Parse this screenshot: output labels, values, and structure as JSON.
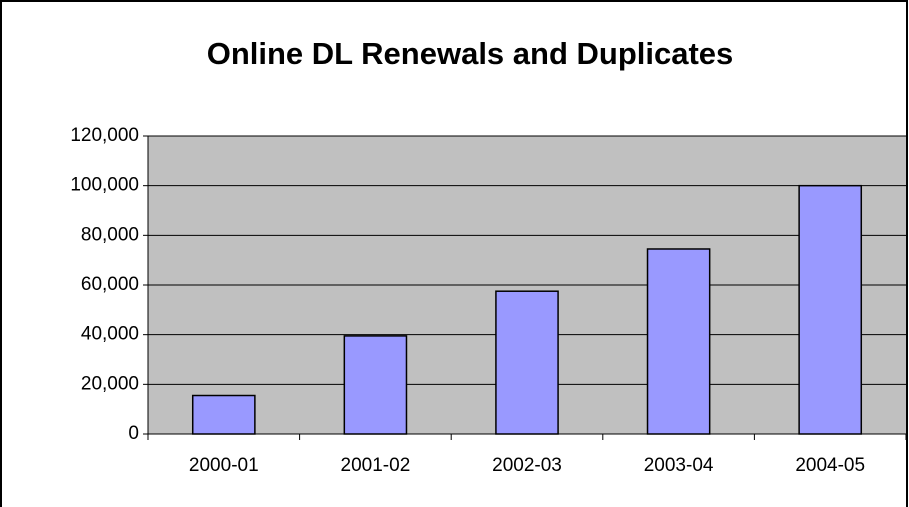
{
  "chart_data": {
    "type": "bar",
    "title": "Online DL Renewals and Duplicates",
    "categories": [
      "2000-01",
      "2001-02",
      "2002-03",
      "2003-04",
      "2004-05"
    ],
    "values": [
      15500,
      39500,
      57500,
      74500,
      100000
    ],
    "color": "#9999ff",
    "ylim": [
      0,
      120000
    ],
    "yticks": [
      0,
      {
        "value": 20000,
        "label": "20,000"
      },
      {
        "value": 40000,
        "label": "40,000"
      },
      {
        "value": 60000,
        "label": "60,000"
      },
      {
        "value": 80000,
        "label": "80,000"
      },
      {
        "value": 100000,
        "label": "100,000"
      },
      {
        "value": 120000,
        "label": "120,000"
      }
    ],
    "grid": true
  }
}
